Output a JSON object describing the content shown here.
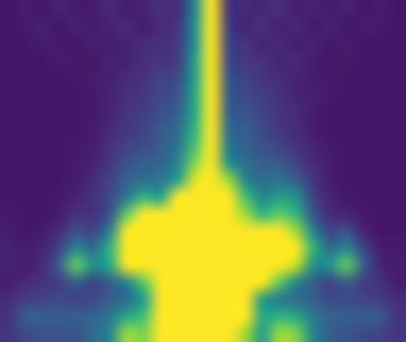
{
  "chart_data": {
    "type": "heatmap",
    "tick_labels": false,
    "color_range": [
      0,
      1
    ],
    "cells": [
      [
        0.06,
        0.08,
        0.06,
        0.1,
        0.07,
        0.08,
        0.12,
        0.08,
        0.1,
        0.14,
        0.12,
        0.45,
        1,
        0.15,
        0.12,
        0.1,
        0.14,
        0.08,
        0.1,
        0.07,
        0.1,
        0.06,
        0.08,
        0.06
      ],
      [
        0.06,
        0.07,
        0.09,
        0.06,
        0.1,
        0.07,
        0.1,
        0.12,
        0.08,
        0.12,
        0.15,
        0.5,
        1,
        0.18,
        0.1,
        0.14,
        0.09,
        0.12,
        0.07,
        0.1,
        0.06,
        0.08,
        0.07,
        0.06
      ],
      [
        0.06,
        0.06,
        0.08,
        0.07,
        0.06,
        0.09,
        0.08,
        0.1,
        0.12,
        0.14,
        0.16,
        0.5,
        1,
        0.2,
        0.15,
        0.1,
        0.12,
        0.08,
        0.1,
        0.07,
        0.08,
        0.06,
        0.06,
        0.06
      ],
      [
        0.06,
        0.06,
        0.06,
        0.08,
        0.07,
        0.06,
        0.1,
        0.09,
        0.13,
        0.15,
        0.18,
        0.55,
        1,
        0.22,
        0.16,
        0.14,
        0.1,
        0.12,
        0.08,
        0.06,
        0.07,
        0.06,
        0.06,
        0.06
      ],
      [
        0.06,
        0.06,
        0.06,
        0.06,
        0.07,
        0.08,
        0.09,
        0.12,
        0.14,
        0.2,
        0.22,
        0.55,
        1,
        0.25,
        0.2,
        0.15,
        0.12,
        0.1,
        0.08,
        0.07,
        0.06,
        0.06,
        0.06,
        0.06
      ],
      [
        0.06,
        0.06,
        0.06,
        0.06,
        0.06,
        0.07,
        0.1,
        0.13,
        0.16,
        0.22,
        0.25,
        0.6,
        1,
        0.28,
        0.22,
        0.18,
        0.14,
        0.1,
        0.09,
        0.07,
        0.06,
        0.06,
        0.06,
        0.06
      ],
      [
        0.06,
        0.06,
        0.06,
        0.06,
        0.06,
        0.07,
        0.1,
        0.15,
        0.18,
        0.24,
        0.3,
        0.6,
        1,
        0.3,
        0.25,
        0.2,
        0.15,
        0.12,
        0.08,
        0.06,
        0.06,
        0.06,
        0.06,
        0.06
      ],
      [
        0.06,
        0.06,
        0.06,
        0.06,
        0.06,
        0.08,
        0.12,
        0.16,
        0.2,
        0.28,
        0.35,
        0.65,
        1,
        0.35,
        0.3,
        0.22,
        0.16,
        0.12,
        0.08,
        0.06,
        0.06,
        0.06,
        0.06,
        0.06
      ],
      [
        0.06,
        0.06,
        0.06,
        0.06,
        0.07,
        0.08,
        0.14,
        0.2,
        0.22,
        0.3,
        0.38,
        0.7,
        1,
        0.4,
        0.3,
        0.25,
        0.2,
        0.14,
        0.1,
        0.07,
        0.06,
        0.06,
        0.06,
        0.06
      ],
      [
        0.06,
        0.06,
        0.06,
        0.06,
        0.07,
        0.1,
        0.16,
        0.25,
        0.3,
        0.32,
        0.45,
        0.8,
        1,
        0.5,
        0.35,
        0.3,
        0.28,
        0.2,
        0.12,
        0.08,
        0.06,
        0.06,
        0.06,
        0.06
      ],
      [
        0.06,
        0.06,
        0.06,
        0.06,
        0.08,
        0.12,
        0.2,
        0.32,
        0.35,
        0.4,
        0.55,
        0.95,
        1,
        0.85,
        0.45,
        0.35,
        0.38,
        0.3,
        0.15,
        0.08,
        0.06,
        0.06,
        0.06,
        0.06
      ],
      [
        0.06,
        0.06,
        0.06,
        0.07,
        0.1,
        0.14,
        0.22,
        0.4,
        0.65,
        0.55,
        1,
        1,
        1,
        1,
        0.7,
        0.45,
        0.55,
        0.5,
        0.2,
        0.1,
        0.07,
        0.06,
        0.06,
        0.06
      ],
      [
        0.07,
        0.06,
        0.06,
        0.08,
        0.14,
        0.14,
        0.25,
        0.75,
        1,
        1,
        1,
        1,
        1,
        1,
        0.85,
        0.65,
        0.75,
        0.65,
        0.25,
        0.12,
        0.1,
        0.07,
        0.06,
        0.06
      ],
      [
        0.08,
        0.06,
        0.08,
        0.12,
        0.25,
        0.2,
        0.45,
        1,
        1,
        1,
        1,
        1,
        1,
        1,
        1,
        1,
        1,
        0.85,
        0.45,
        0.2,
        0.25,
        0.1,
        0.06,
        0.06
      ],
      [
        0.1,
        0.08,
        0.1,
        0.2,
        0.45,
        0.35,
        0.65,
        1,
        1,
        1,
        1,
        1,
        1,
        1,
        1,
        1,
        1,
        1,
        0.65,
        0.35,
        0.45,
        0.2,
        0.08,
        0.07
      ],
      [
        0.1,
        0.08,
        0.12,
        0.3,
        0.75,
        0.5,
        0.6,
        1,
        1,
        1,
        1,
        1,
        1,
        1,
        1,
        1,
        1,
        0.9,
        0.5,
        0.5,
        0.75,
        0.3,
        0.1,
        0.08
      ],
      [
        0.08,
        0.12,
        0.15,
        0.18,
        0.3,
        0.2,
        0.3,
        0.45,
        0.75,
        1,
        1,
        1,
        1,
        1,
        1,
        1,
        0.75,
        0.45,
        0.3,
        0.2,
        0.3,
        0.18,
        0.14,
        0.08
      ],
      [
        0.12,
        0.18,
        0.2,
        0.22,
        0.2,
        0.22,
        0.3,
        0.35,
        0.55,
        1,
        1,
        1,
        1,
        1,
        1,
        0.55,
        0.4,
        0.35,
        0.3,
        0.22,
        0.22,
        0.2,
        0.18,
        0.12
      ],
      [
        0.15,
        0.3,
        0.3,
        0.3,
        0.3,
        0.32,
        0.4,
        0.6,
        0.7,
        1,
        1,
        1,
        1,
        1,
        1,
        0.6,
        0.65,
        0.6,
        0.4,
        0.32,
        0.3,
        0.3,
        0.28,
        0.15
      ],
      [
        0.15,
        0.22,
        0.25,
        0.25,
        0.25,
        0.35,
        0.45,
        0.85,
        0.8,
        1,
        1,
        1,
        1,
        1,
        0.85,
        0.55,
        0.85,
        0.8,
        0.45,
        0.3,
        0.25,
        0.22,
        0.2,
        0.15
      ]
    ]
  }
}
